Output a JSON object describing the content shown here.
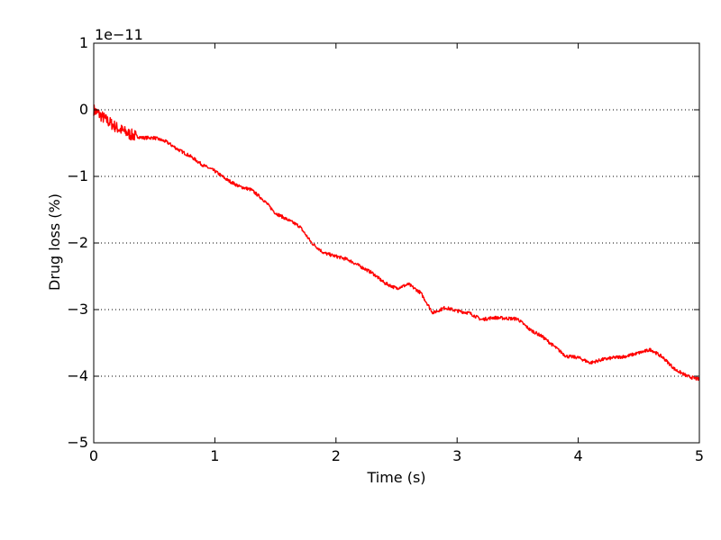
{
  "chart_data": {
    "type": "line",
    "xlabel": "Time (s)",
    "ylabel": "Drug loss (%)",
    "y_offset_label": "1e−11",
    "xlim": [
      0,
      5
    ],
    "ylim": [
      -5,
      1
    ],
    "x_ticks": [
      0,
      1,
      2,
      3,
      4,
      5
    ],
    "x_tick_labels": [
      "0",
      "1",
      "2",
      "3",
      "4",
      "5"
    ],
    "y_ticks": [
      1,
      0,
      -1,
      -2,
      -3,
      -4,
      -5
    ],
    "y_tick_labels": [
      "1",
      "0",
      "−1",
      "−2",
      "−3",
      "−4",
      "−5"
    ],
    "grid": "horizontal dotted",
    "series": [
      {
        "color": "#ff0000",
        "x": [
          0,
          0.1,
          0.2,
          0.3,
          0.4,
          0.5,
          0.6,
          0.7,
          0.8,
          0.9,
          1.0,
          1.1,
          1.2,
          1.3,
          1.4,
          1.5,
          1.6,
          1.7,
          1.8,
          1.9,
          2.0,
          2.1,
          2.2,
          2.3,
          2.4,
          2.5,
          2.6,
          2.7,
          2.8,
          2.9,
          3.0,
          3.1,
          3.2,
          3.3,
          3.4,
          3.5,
          3.6,
          3.7,
          3.8,
          3.9,
          4.0,
          4.1,
          4.2,
          4.3,
          4.4,
          4.5,
          4.6,
          4.7,
          4.8,
          4.9,
          5.0
        ],
        "y": [
          0.0,
          -0.15,
          -0.28,
          -0.37,
          -0.42,
          -0.42,
          -0.48,
          -0.6,
          -0.7,
          -0.83,
          -0.92,
          -1.05,
          -1.15,
          -1.2,
          -1.35,
          -1.55,
          -1.65,
          -1.75,
          -2.0,
          -2.15,
          -2.2,
          -2.25,
          -2.35,
          -2.45,
          -2.6,
          -2.68,
          -2.62,
          -2.75,
          -3.05,
          -2.97,
          -3.02,
          -3.05,
          -3.15,
          -3.12,
          -3.13,
          -3.14,
          -3.3,
          -3.4,
          -3.55,
          -3.7,
          -3.72,
          -3.8,
          -3.75,
          -3.72,
          -3.7,
          -3.65,
          -3.6,
          -3.72,
          -3.9,
          -4.0,
          -4.05
        ]
      }
    ]
  }
}
